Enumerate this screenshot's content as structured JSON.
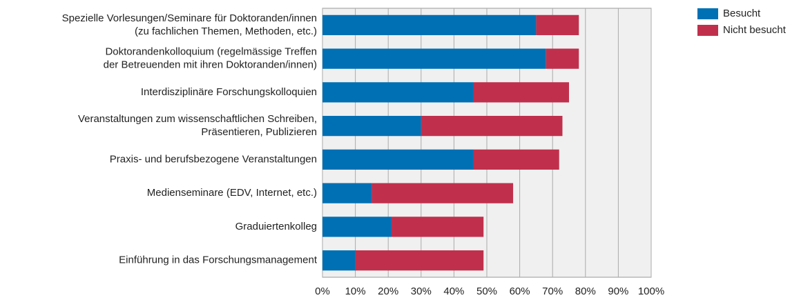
{
  "chart_data": {
    "type": "stacked_barh",
    "categories": [
      "Spezielle Vorlesungen/Seminare für Doktoranden/innen\n(zu fachlichen Themen, Methoden, etc.)",
      "Doktorandenkolloquium (regelmässige Treffen\nder Betreuenden mit ihren Doktoranden/innen)",
      "Interdisziplinäre Forschungskolloquien",
      "Veranstaltungen zum wissenschaftlichen Schreiben,\nPräsentieren, Publizieren",
      "Praxis- und berufsbezogene Veranstaltungen",
      "Medienseminare (EDV, Internet, etc.)",
      "Graduiertenkolleg",
      "Einführung in das Forschungsmanagement"
    ],
    "series": [
      {
        "name": "Besucht",
        "color": "#0070b4",
        "values": [
          65,
          68,
          46,
          30,
          46,
          15,
          21,
          10
        ]
      },
      {
        "name": "Nicht besucht",
        "color": "#c0304c",
        "values": [
          13,
          10,
          29,
          43,
          26,
          43,
          28,
          39
        ]
      }
    ],
    "xlim": [
      0,
      100
    ],
    "xticks": [
      {
        "value": 0,
        "label": "0%"
      },
      {
        "value": 10,
        "label": "10%"
      },
      {
        "value": 20,
        "label": "20%"
      },
      {
        "value": 30,
        "label": "30%"
      },
      {
        "value": 40,
        "label": "40%"
      },
      {
        "value": 50,
        "label": "50%"
      },
      {
        "value": 60,
        "label": "60%"
      },
      {
        "value": 70,
        "label": "70%"
      },
      {
        "value": 80,
        "label": "80%"
      },
      {
        "value": 90,
        "label": "90%"
      },
      {
        "value": 100,
        "label": "100%"
      }
    ],
    "grid": true,
    "legend": "top-right"
  }
}
